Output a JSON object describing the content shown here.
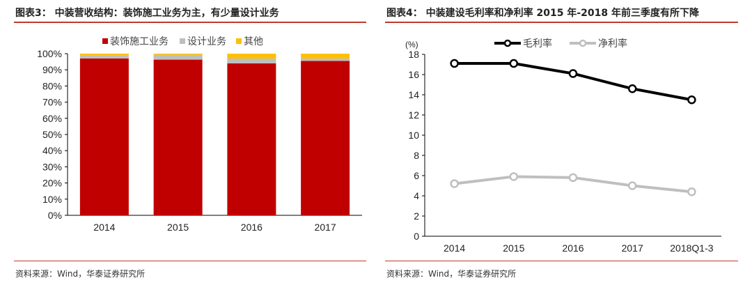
{
  "left": {
    "title": "图表3： 中装营收结构：装饰施工业务为主，有少量设计业务",
    "source": "资料来源：Wind，华泰证券研究所"
  },
  "right": {
    "title": "图表4： 中装建设毛利率和净利率 2015 年-2018 年前三季度有所下降",
    "source": "资料来源：Wind，华泰证券研究所"
  },
  "chart_data": [
    {
      "type": "bar",
      "stacked": true,
      "categories": [
        "2014",
        "2015",
        "2016",
        "2017"
      ],
      "series": [
        {
          "name": "装饰施工业务",
          "color": "#c00000",
          "values": [
            97,
            96.3,
            94,
            95.5
          ]
        },
        {
          "name": "设计业务",
          "color": "#bfbfbf",
          "values": [
            2,
            3,
            3,
            1.5
          ]
        },
        {
          "name": "其他",
          "color": "#ffc000",
          "values": [
            1,
            0.7,
            3,
            3
          ]
        }
      ],
      "ylim": [
        0,
        100
      ],
      "yticks": [
        "0%",
        "10%",
        "20%",
        "30%",
        "40%",
        "50%",
        "60%",
        "70%",
        "80%",
        "90%",
        "100%"
      ],
      "legend": "top"
    },
    {
      "type": "line",
      "categories": [
        "2014",
        "2015",
        "2016",
        "2017",
        "2018Q1-3"
      ],
      "ylabel": "(%)",
      "ylim": [
        0,
        18
      ],
      "yticks": [
        "0",
        "2",
        "4",
        "6",
        "8",
        "10",
        "12",
        "14",
        "16",
        "18"
      ],
      "series": [
        {
          "name": "毛利率",
          "color": "#000000",
          "values": [
            17.1,
            17.1,
            16.1,
            14.6,
            13.5
          ]
        },
        {
          "name": "净利率",
          "color": "#bfbfbf",
          "values": [
            5.2,
            5.9,
            5.8,
            5.0,
            4.4
          ]
        }
      ],
      "legend": "top"
    }
  ]
}
